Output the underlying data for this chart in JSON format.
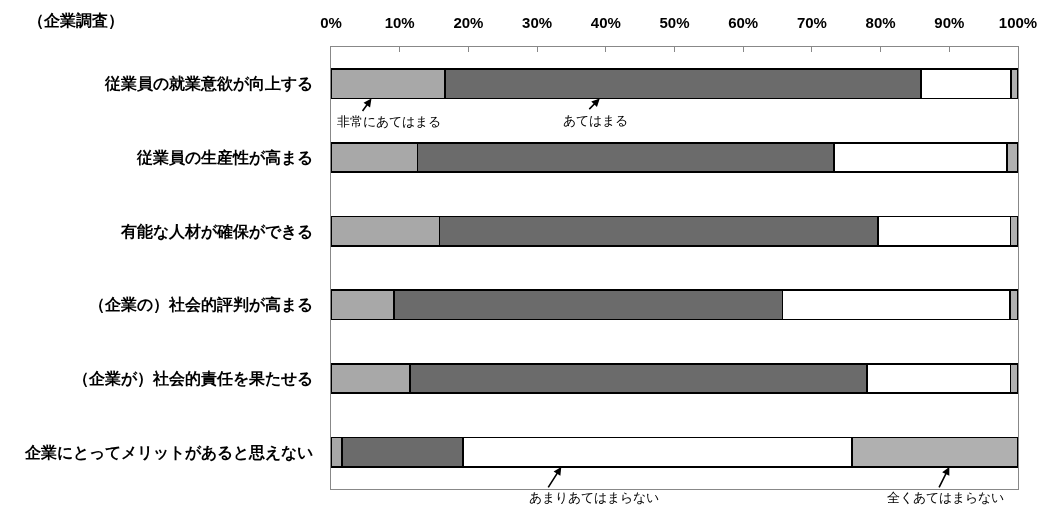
{
  "chart_data": {
    "type": "bar",
    "orientation": "horizontal",
    "stacked": true,
    "title": "（企業調査）",
    "categories": [
      "従業員の就業意欲が向上する",
      "従業員の生産性が高まる",
      "有能な人材が確保ができる",
      "（企業の）社会的評判が高まる",
      "（企業が）社会的責任を果たせる",
      "企業にとってメリットがあると思えない"
    ],
    "series": [
      {
        "name": "非常にあてはまる",
        "color": "#a8a8a8",
        "values": [
          16.6,
          12.6,
          15.8,
          9.2,
          11.5,
          1.6
        ]
      },
      {
        "name": "あてはまる",
        "color": "#6b6b6b",
        "values": [
          69.3,
          60.6,
          63.8,
          56.5,
          66.5,
          17.6
        ]
      },
      {
        "name": "あまりあてはまらない",
        "color": "#ffffff",
        "values": [
          13.1,
          25.2,
          19.3,
          33.1,
          20.9,
          56.6
        ]
      },
      {
        "name": "全くあてはまらない",
        "color": "#b0b0b0",
        "values": [
          1.0,
          1.6,
          1.1,
          1.2,
          1.1,
          24.2
        ]
      }
    ],
    "xlim": [
      0,
      100
    ],
    "xticks": [
      {
        "value": 0,
        "label": "0%"
      },
      {
        "value": 10,
        "label": "10%"
      },
      {
        "value": 20,
        "label": "20%"
      },
      {
        "value": 30,
        "label": "30%"
      },
      {
        "value": 40,
        "label": "40%"
      },
      {
        "value": 50,
        "label": "50%"
      },
      {
        "value": 60,
        "label": "60%"
      },
      {
        "value": 70,
        "label": "70%"
      },
      {
        "value": 80,
        "label": "80%"
      },
      {
        "value": 90,
        "label": "90%"
      },
      {
        "value": 100,
        "label": "100%"
      }
    ],
    "grid": false,
    "legend": "center"
  }
}
